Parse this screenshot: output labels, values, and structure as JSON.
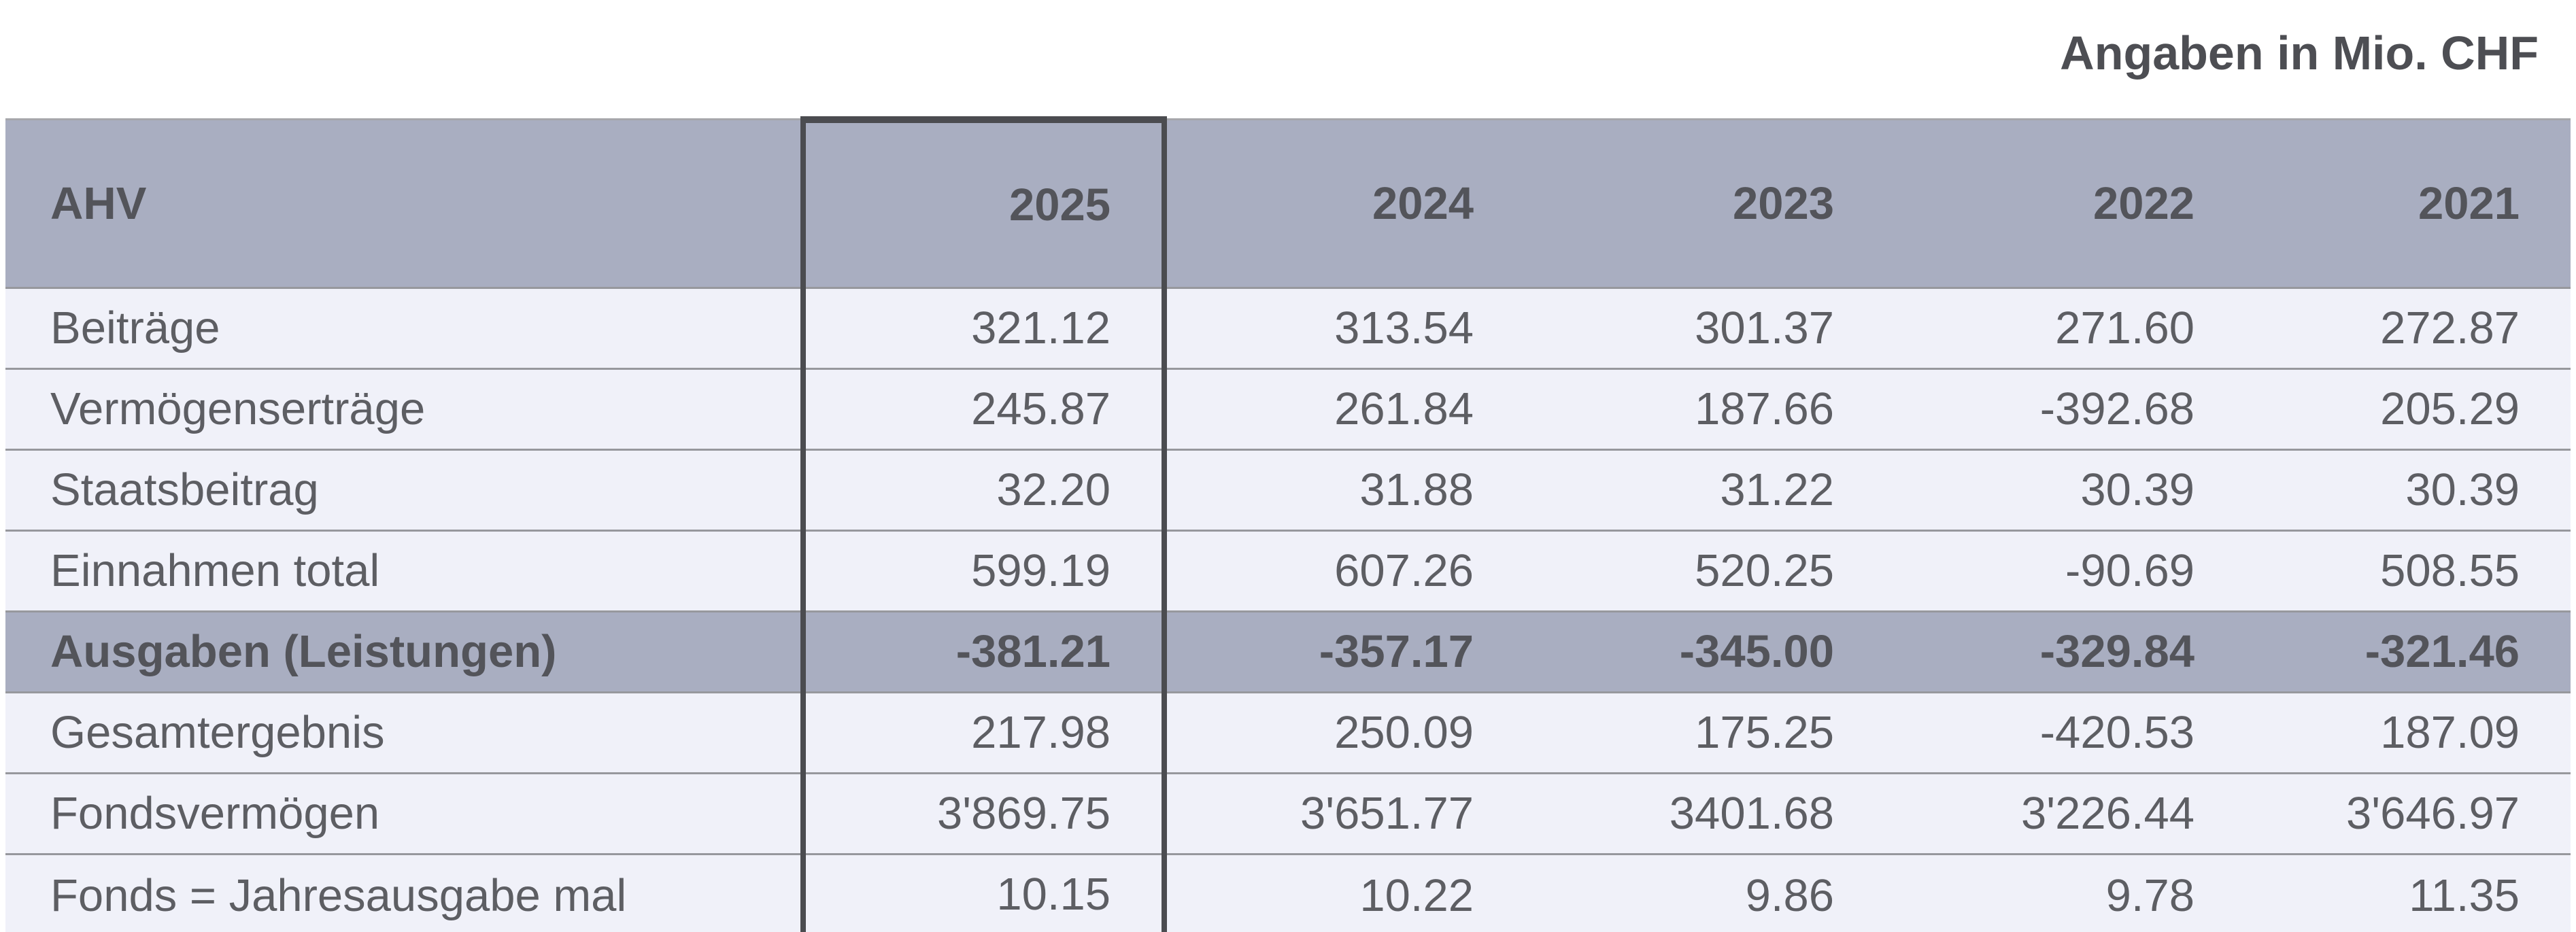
{
  "header_note": "Angaben in Mio. CHF",
  "colors": {
    "header_bg": "#a9aec1",
    "row_bg": "#f0f1f9",
    "highlight_border": "#4b4c50",
    "grid_line": "#97989d",
    "text_bold": "#53545a",
    "text_regular": "#5d5e63"
  },
  "chart_data": {
    "type": "table",
    "title": "AHV",
    "unit": "Mio. CHF",
    "columns": [
      "AHV",
      "2025",
      "2024",
      "2023",
      "2022",
      "2021"
    ],
    "highlighted_column": "2025",
    "rows": [
      {
        "label": "Beiträge",
        "highlight": false,
        "values": [
          "321.12",
          "313.54",
          "301.37",
          "271.60",
          "272.87"
        ]
      },
      {
        "label": "Vermögenserträge",
        "highlight": false,
        "values": [
          "245.87",
          "261.84",
          "187.66",
          "-392.68",
          "205.29"
        ]
      },
      {
        "label": "Staatsbeitrag",
        "highlight": false,
        "values": [
          "32.20",
          "31.88",
          "31.22",
          "30.39",
          "30.39"
        ]
      },
      {
        "label": "Einnahmen total",
        "highlight": false,
        "values": [
          "599.19",
          "607.26",
          "520.25",
          "-90.69",
          "508.55"
        ]
      },
      {
        "label": "Ausgaben (Leistungen)",
        "highlight": true,
        "values": [
          "-381.21",
          "-357.17",
          "-345.00",
          "-329.84",
          "-321.46"
        ]
      },
      {
        "label": "Gesamtergebnis",
        "highlight": false,
        "values": [
          "217.98",
          "250.09",
          "175.25",
          "-420.53",
          "187.09"
        ]
      },
      {
        "label": "Fondsvermögen",
        "highlight": false,
        "values": [
          "3'869.75",
          "3'651.77",
          "3401.68",
          "3'226.44",
          "3'646.97"
        ]
      },
      {
        "label": "Fonds = Jahresausgabe mal",
        "highlight": false,
        "values": [
          "10.15",
          "10.22",
          "9.86",
          "9.78",
          "11.35"
        ]
      }
    ]
  }
}
